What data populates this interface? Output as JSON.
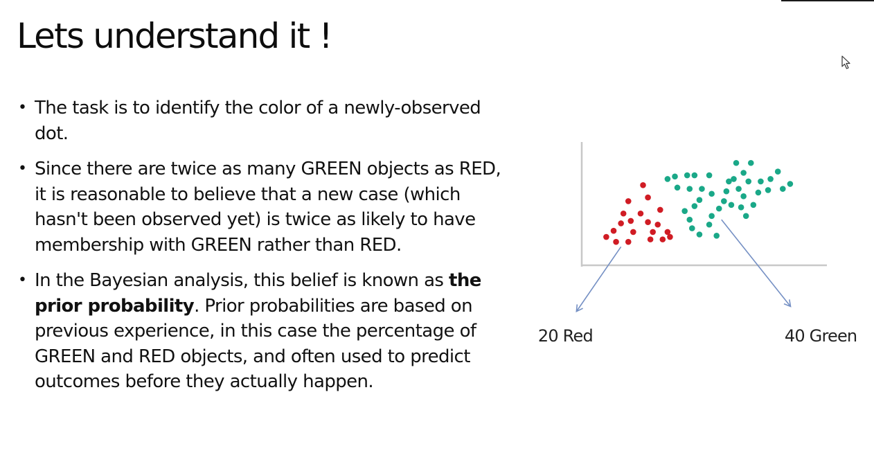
{
  "slide": {
    "title": "Lets understand it !",
    "bullets": [
      {
        "text": "The task is to identify the color of a newly-observed dot."
      },
      {
        "text": "Since there are twice as many GREEN objects as RED, it is reasonable to believe that a new case (which hasn't been observed yet) is twice as likely to have membership with GREEN rather than RED."
      },
      {
        "before": "In the Bayesian analysis, this belief is known as ",
        "bold": "the prior probability",
        "after": ". Prior probabilities are based on previous experience, in this case the percentage of GREEN and RED objects, and often used to predict outcomes before they actually happen."
      }
    ]
  },
  "chart_data": {
    "type": "scatter",
    "title": "",
    "xlabel": "",
    "ylabel": "",
    "grid": false,
    "axes_ticks": false,
    "xlim": [
      0,
      100
    ],
    "ylim": [
      0,
      100
    ],
    "series": [
      {
        "label_text": "20 Red",
        "color": "#d01c24",
        "points": [
          [
            25,
            65
          ],
          [
            27,
            55
          ],
          [
            19,
            52
          ],
          [
            17,
            42
          ],
          [
            24,
            42
          ],
          [
            16,
            34
          ],
          [
            20,
            36
          ],
          [
            27,
            35
          ],
          [
            32,
            45
          ],
          [
            31,
            33
          ],
          [
            13,
            28
          ],
          [
            21,
            27
          ],
          [
            29,
            27
          ],
          [
            35,
            27
          ],
          [
            10,
            23
          ],
          [
            14,
            19
          ],
          [
            19,
            19
          ],
          [
            28,
            21
          ],
          [
            33,
            21
          ],
          [
            36,
            23
          ]
        ]
      },
      {
        "label_text": "40 Green",
        "color": "#1aa888",
        "points": [
          [
            35,
            70
          ],
          [
            38,
            72
          ],
          [
            43,
            73
          ],
          [
            46,
            73
          ],
          [
            52,
            73
          ],
          [
            63,
            83
          ],
          [
            69,
            83
          ],
          [
            39,
            63
          ],
          [
            44,
            62
          ],
          [
            49,
            62
          ],
          [
            53,
            58
          ],
          [
            48,
            53
          ],
          [
            46,
            48
          ],
          [
            42,
            44
          ],
          [
            44,
            37
          ],
          [
            45,
            30
          ],
          [
            48,
            25
          ],
          [
            55,
            24
          ],
          [
            52,
            33
          ],
          [
            53,
            40
          ],
          [
            56,
            46
          ],
          [
            58,
            52
          ],
          [
            59,
            60
          ],
          [
            60,
            68
          ],
          [
            62,
            70
          ],
          [
            64,
            62
          ],
          [
            66,
            56
          ],
          [
            61,
            49
          ],
          [
            65,
            47
          ],
          [
            67,
            40
          ],
          [
            70,
            49
          ],
          [
            72,
            59
          ],
          [
            68,
            68
          ],
          [
            73,
            68
          ],
          [
            76,
            61
          ],
          [
            77,
            70
          ],
          [
            80,
            76
          ],
          [
            82,
            62
          ],
          [
            85,
            66
          ],
          [
            66,
            75
          ]
        ]
      }
    ],
    "annotations": [
      {
        "text": "20 Red",
        "arrow_from": [
          16,
          15
        ],
        "arrow_to": [
          -2,
          -37
        ]
      },
      {
        "text": "40 Green",
        "arrow_from": [
          57,
          37
        ],
        "arrow_to": [
          85,
          -33
        ]
      }
    ]
  }
}
